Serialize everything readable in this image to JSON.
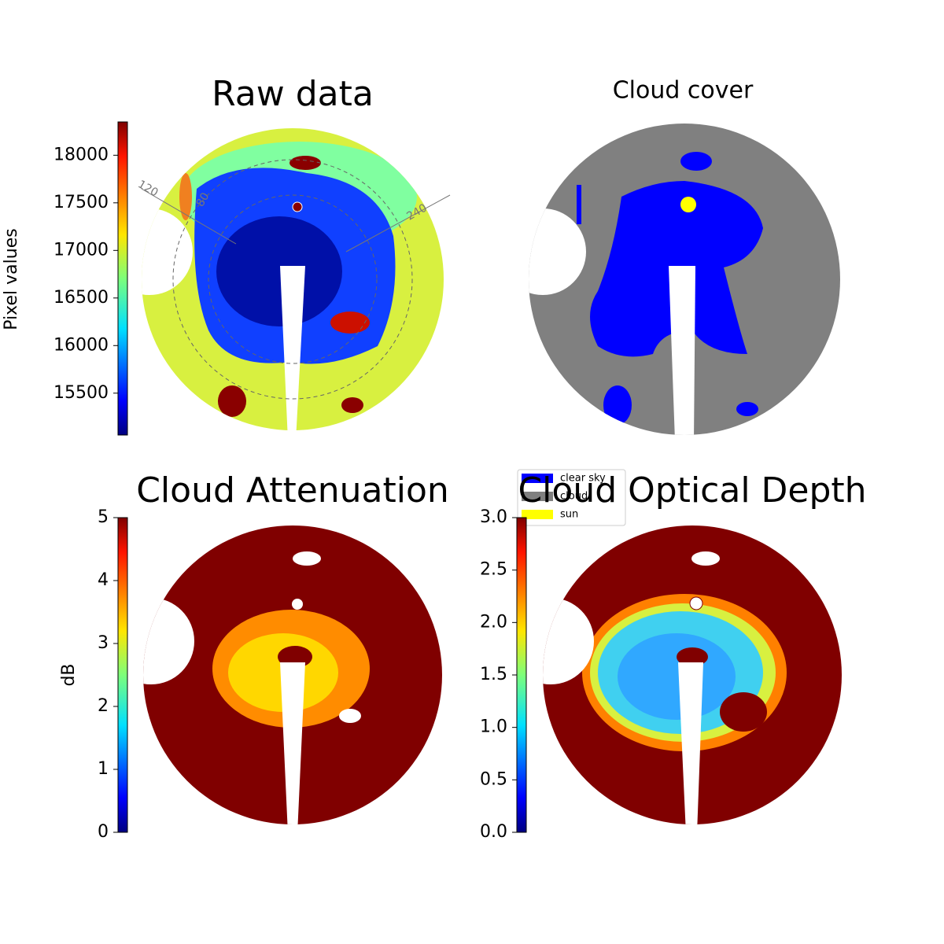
{
  "chart_data": [
    {
      "type": "image",
      "title": "Raw data",
      "colorbar_label": "Pixel values",
      "ylim": [
        15060,
        18350
      ],
      "yticks": [
        15500,
        16000,
        16500,
        17000,
        17500,
        18000
      ],
      "annotations": [
        "120",
        "80",
        "240"
      ]
    },
    {
      "type": "image",
      "title": "Cloud cover",
      "categories": [
        "clear sky",
        "cloud",
        "sun"
      ],
      "colors": [
        "#0000ff",
        "#808080",
        "#ffff00"
      ]
    },
    {
      "type": "image",
      "title": "Cloud Attenuation",
      "colorbar_label": "dB",
      "ylim": [
        0,
        5
      ],
      "yticks": [
        0,
        1,
        2,
        3,
        4,
        5
      ]
    },
    {
      "type": "image",
      "title": "Cloud Optical Depth",
      "ylim": [
        0,
        3
      ],
      "yticks": [
        {
          "value": 0,
          "label": "0.0"
        },
        {
          "value": 0.5,
          "label": "0.5"
        },
        {
          "value": 1,
          "label": "1.0"
        },
        {
          "value": 1.5,
          "label": "1.5"
        },
        {
          "value": 2,
          "label": "2.0"
        },
        {
          "value": 2.5,
          "label": "2.5"
        },
        {
          "value": 3,
          "label": "3.0"
        }
      ]
    }
  ]
}
